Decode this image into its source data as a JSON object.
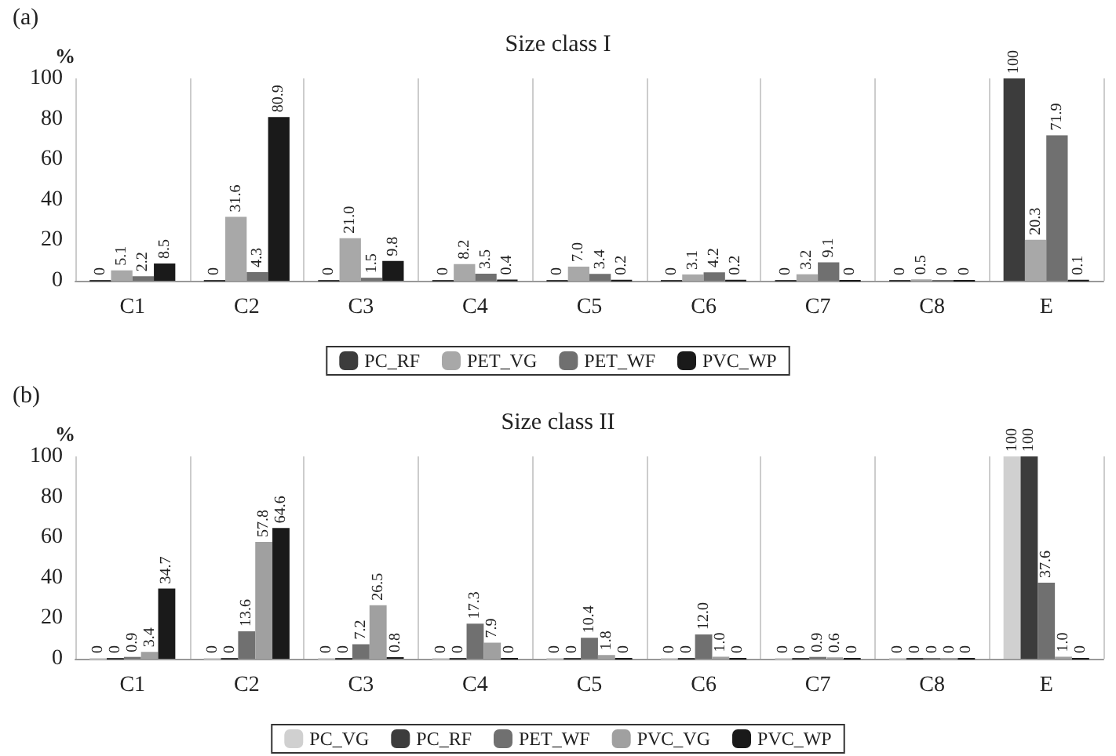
{
  "chart_data": [
    {
      "type": "bar",
      "title": "Size class I",
      "ylabel": "%",
      "annotations": [
        "(a)"
      ],
      "categories": [
        "C1",
        "C2",
        "C3",
        "C4",
        "C5",
        "C6",
        "C7",
        "C8",
        "E"
      ],
      "ylim": [
        0,
        100
      ],
      "yticks": [
        0,
        20,
        40,
        60,
        80,
        100
      ],
      "grid": "x",
      "legend": "bottom",
      "series": [
        {
          "name": "PC_RF",
          "color": "#3c3c3c",
          "values": [
            0,
            0,
            0,
            0,
            0,
            0,
            0,
            0,
            100
          ],
          "value_labels": [
            "0",
            "0",
            "0",
            "0",
            "0",
            "0",
            "0",
            "0",
            "100"
          ]
        },
        {
          "name": "PET_VG",
          "color": "#a8a8a8",
          "values": [
            5.1,
            31.6,
            21.0,
            8.2,
            7.0,
            3.1,
            3.2,
            0.5,
            20.3
          ],
          "value_labels": [
            "5.1",
            "31.6",
            "21.0",
            "8.2",
            "7.0",
            "3.1",
            "3.2",
            "0.5",
            "20.3"
          ]
        },
        {
          "name": "PET_WF",
          "color": "#707070",
          "values": [
            2.2,
            4.3,
            1.5,
            3.5,
            3.4,
            4.2,
            9.1,
            0,
            71.9
          ],
          "value_labels": [
            "2.2",
            "4.3",
            "1.5",
            "3.5",
            "3.4",
            "4.2",
            "9.1",
            "0",
            "71.9"
          ]
        },
        {
          "name": "PVC_WP",
          "color": "#1a1a1a",
          "values": [
            8.5,
            80.9,
            9.8,
            0.4,
            0.2,
            0.2,
            0,
            0,
            0.1
          ],
          "value_labels": [
            "8.5",
            "80.9",
            "9.8",
            "0.4",
            "0.2",
            "0.2",
            "0",
            "0",
            "0.1"
          ]
        }
      ]
    },
    {
      "type": "bar",
      "title": "Size class II",
      "ylabel": "%",
      "annotations": [
        "(b)"
      ],
      "categories": [
        "C1",
        "C2",
        "C3",
        "C4",
        "C5",
        "C6",
        "C7",
        "C8",
        "E"
      ],
      "ylim": [
        0,
        100
      ],
      "yticks": [
        0,
        20,
        40,
        60,
        80,
        100
      ],
      "grid": "x",
      "legend": "bottom",
      "series": [
        {
          "name": "PC_VG",
          "color": "#d0d0d0",
          "values": [
            0,
            0,
            0,
            0,
            0,
            0,
            0,
            0,
            100
          ],
          "value_labels": [
            "0",
            "0",
            "0",
            "0",
            "0",
            "0",
            "0",
            "0",
            "100"
          ]
        },
        {
          "name": "PC_RF",
          "color": "#3c3c3c",
          "values": [
            0,
            0,
            0,
            0,
            0,
            0,
            0,
            0,
            100
          ],
          "value_labels": [
            "0",
            "0",
            "0",
            "0",
            "0",
            "0",
            "0",
            "0",
            "100"
          ]
        },
        {
          "name": "PET_WF",
          "color": "#707070",
          "values": [
            0.9,
            13.6,
            7.2,
            17.3,
            10.4,
            12.0,
            0.9,
            0,
            37.6
          ],
          "value_labels": [
            "0.9",
            "13.6",
            "7.2",
            "17.3",
            "10.4",
            "12.0",
            "0.9",
            "0",
            "37.6"
          ]
        },
        {
          "name": "PVC_VG",
          "color": "#a0a0a0",
          "values": [
            3.4,
            57.8,
            26.5,
            7.9,
            1.8,
            1.0,
            0.6,
            0,
            1.0
          ],
          "value_labels": [
            "3.4",
            "57.8",
            "26.5",
            "7.9",
            "1.8",
            "1.0",
            "0.6",
            "0",
            "1.0"
          ]
        },
        {
          "name": "PVC_WP",
          "color": "#1a1a1a",
          "values": [
            34.7,
            64.6,
            0.8,
            0,
            0,
            0,
            0,
            0,
            0
          ],
          "value_labels": [
            "34.7",
            "64.6",
            "0.8",
            "0",
            "0",
            "0",
            "0",
            "0",
            "0"
          ]
        }
      ]
    }
  ]
}
